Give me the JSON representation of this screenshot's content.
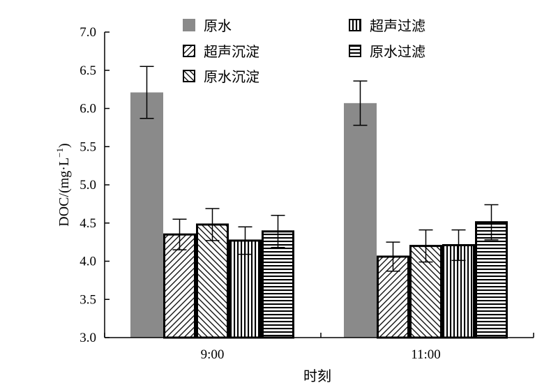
{
  "chart_data": {
    "type": "bar",
    "title": "",
    "xlabel": "时刻",
    "ylabel": "DOC/(mg·L⁻¹)",
    "ylabel_parts": {
      "main": "DOC/(mg·L",
      "sup": "−1",
      "close": ")"
    },
    "ylim": [
      3.0,
      7.0
    ],
    "yticks": [
      "3.0",
      "3.5",
      "4.0",
      "4.5",
      "5.0",
      "5.5",
      "6.0",
      "6.5",
      "7.0"
    ],
    "categories": [
      "9:00",
      "11:00"
    ],
    "series": [
      {
        "name": "原水",
        "pattern": "solid-gray",
        "values": [
          6.21,
          6.07
        ],
        "errors": [
          0.34,
          0.29
        ]
      },
      {
        "name": "超声沉淀",
        "pattern": "diagonal-forward",
        "values": [
          4.35,
          4.06
        ],
        "errors": [
          0.2,
          0.19
        ]
      },
      {
        "name": "原水沉淀",
        "pattern": "diagonal-backward",
        "values": [
          4.48,
          4.2
        ],
        "errors": [
          0.21,
          0.21
        ]
      },
      {
        "name": "超声过滤",
        "pattern": "vertical",
        "values": [
          4.27,
          4.21
        ],
        "errors": [
          0.18,
          0.2
        ]
      },
      {
        "name": "原水过滤",
        "pattern": "horizontal",
        "values": [
          4.39,
          4.51
        ],
        "errors": [
          0.21,
          0.23
        ]
      }
    ],
    "legend_position": "top",
    "grid": false,
    "colors": {
      "gray_fill": "#8a8a8a",
      "outline": "#000000",
      "background": "#ffffff"
    }
  }
}
